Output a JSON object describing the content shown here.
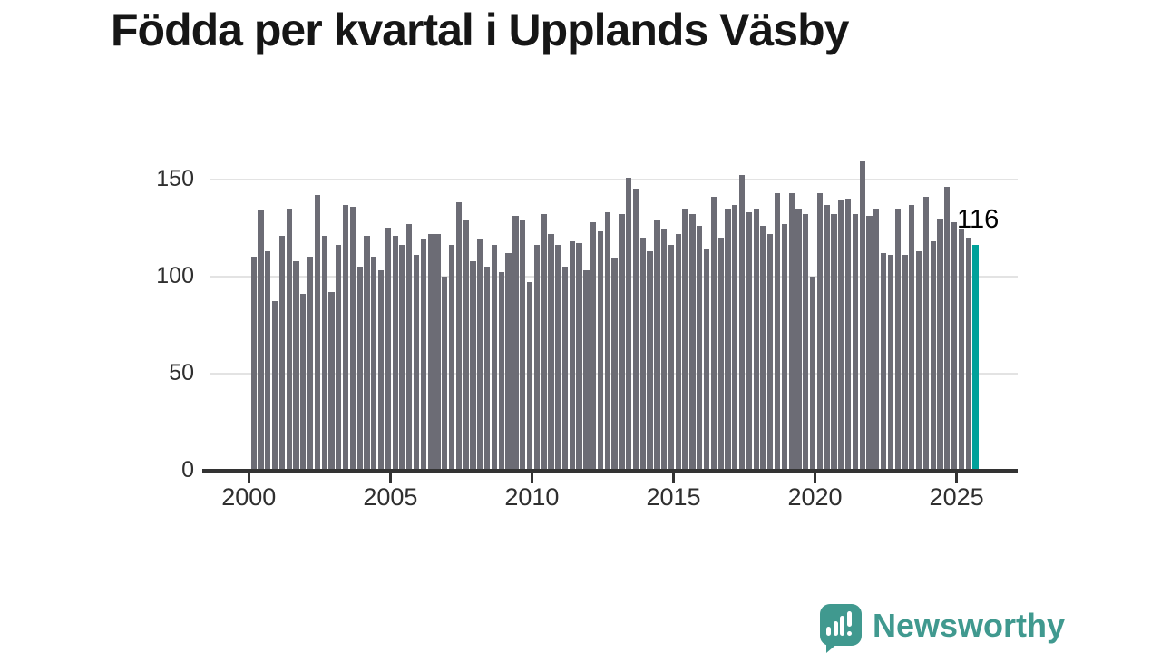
{
  "title": "Födda per kvartal i Upplands Väsby",
  "annotation": {
    "label": "116"
  },
  "branding": {
    "name": "Newsworthy",
    "icon": "newsworthy-speech-bubble-bar-chart-icon"
  },
  "colors": {
    "bar": "#6c6c75",
    "highlight": "#00a19a",
    "grid": "#e3e3e3",
    "axis": "#333333",
    "tick_text": "#2f2f2f",
    "title_text": "#161616",
    "brand": "#40998f"
  },
  "chart_data": {
    "type": "bar",
    "title": "Födda per kvartal i Upplands Väsby",
    "x_axis": {
      "tick_labels": [
        "2000",
        "2005",
        "2010",
        "2015",
        "2020",
        "2025"
      ],
      "tick_bar_indices": [
        0,
        20,
        40,
        60,
        80,
        100
      ],
      "unit": "quarter",
      "start": "2000 Q1",
      "end": "2025 Q3"
    },
    "y_axis": {
      "tick_labels": [
        "0",
        "50",
        "100",
        "150"
      ],
      "tick_values": [
        0,
        50,
        100,
        150
      ],
      "range": [
        0,
        165
      ],
      "grid": true
    },
    "values": [
      110,
      134,
      113,
      87,
      121,
      135,
      108,
      91,
      110,
      142,
      121,
      92,
      116,
      137,
      136,
      105,
      121,
      110,
      103,
      125,
      121,
      116,
      127,
      111,
      119,
      122,
      122,
      100,
      116,
      138,
      129,
      108,
      119,
      105,
      116,
      102,
      112,
      131,
      129,
      97,
      116,
      132,
      122,
      116,
      105,
      118,
      117,
      103,
      128,
      123,
      133,
      109,
      132,
      151,
      145,
      120,
      113,
      129,
      124,
      116,
      122,
      135,
      132,
      126,
      114,
      141,
      120,
      135,
      137,
      152,
      133,
      135,
      126,
      122,
      143,
      127,
      143,
      135,
      132,
      100,
      143,
      137,
      132,
      139,
      140,
      132,
      159,
      131,
      135,
      112,
      111,
      135,
      111,
      137,
      113,
      141,
      118,
      130,
      146,
      128,
      124,
      120,
      116
    ],
    "highlight_index": 102,
    "highlight_value_label": "116",
    "legend": "none"
  }
}
